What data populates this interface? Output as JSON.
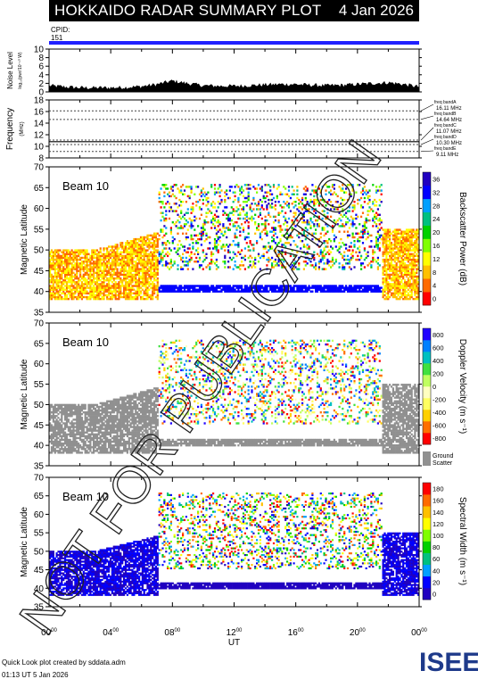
{
  "header": {
    "title": "HOKKAIDO RADAR SUMMARY PLOT",
    "date": "4 Jan 2026"
  },
  "cpid": {
    "label": "CPID:",
    "value": "151"
  },
  "footer": {
    "line1": "Quick Look plot created by sddata.adm",
    "line2": "01:13 UT  5 Jan 2026"
  },
  "watermark": "NOT FOR PUBLICATION",
  "logo_text": "ISEE",
  "chart_data": [
    {
      "type": "area",
      "name": "noise",
      "ylabel": "Noise Level",
      "ylabel_sub": "log₁₀(pwr/10⁻¹⁰ W)",
      "ylim": [
        0,
        10
      ],
      "yticks": [
        "0",
        "2",
        "4",
        "6",
        "8",
        "10"
      ],
      "x": [
        0,
        1,
        2,
        3,
        4,
        5,
        6,
        7,
        8,
        9,
        10,
        11,
        12,
        13,
        14,
        15,
        16,
        17,
        18,
        19,
        20,
        21,
        22,
        23,
        24
      ],
      "values": [
        1.5,
        1.2,
        1.0,
        1.0,
        1.0,
        1.1,
        1.3,
        1.8,
        2.6,
        2.0,
        1.5,
        1.4,
        1.4,
        1.5,
        1.7,
        1.8,
        1.8,
        1.6,
        1.5,
        1.6,
        1.8,
        2.0,
        2.2,
        1.8,
        1.2
      ]
    },
    {
      "type": "line",
      "name": "frequency",
      "ylabel": "Frequency",
      "ylabel_sub": "(MHz)",
      "ylim": [
        8,
        18
      ],
      "yticks": [
        "8",
        "10",
        "12",
        "14",
        "16",
        "18"
      ],
      "bands": [
        {
          "name": "freq bandA",
          "mhz": 16.11,
          "label": "16.11 MHz"
        },
        {
          "name": "freq bandB",
          "mhz": 14.64,
          "label": "14.64 MHz"
        },
        {
          "name": "freq bandC",
          "mhz": 11.07,
          "label": "11.07 MHz"
        },
        {
          "name": "freq bandD",
          "mhz": 10.3,
          "label": "10.30 MHz"
        },
        {
          "name": "freq bandE",
          "mhz": 9.11,
          "label": "9.11 MHz"
        }
      ],
      "operating_mhz": 10.8
    },
    {
      "type": "heatmap",
      "name": "power",
      "beam_label": "Beam 10",
      "ylabel": "Magnetic Latitude",
      "ylim": [
        35,
        70
      ],
      "yticks": [
        "35",
        "40",
        "45",
        "50",
        "55",
        "60",
        "65",
        "70"
      ],
      "colorbar_label": "Backscatter Power (dB)",
      "colorbar_ticks": [
        "0",
        "4",
        "8",
        "12",
        "16",
        "20",
        "24",
        "28",
        "32",
        "36"
      ]
    },
    {
      "type": "heatmap",
      "name": "velocity",
      "beam_label": "Beam 10",
      "ylabel": "Magnetic Latitude",
      "ylim": [
        35,
        70
      ],
      "yticks": [
        "35",
        "40",
        "45",
        "50",
        "55",
        "60",
        "65",
        "70"
      ],
      "colorbar_label": "Doppler Velocity (m s⁻¹)",
      "colorbar_ticks": [
        "-800",
        "-600",
        "-400",
        "-200",
        "0",
        "200",
        "400",
        "600",
        "800"
      ],
      "ground_scatter_label": "Ground",
      "ground_scatter_label2": "Scatter"
    },
    {
      "type": "heatmap",
      "name": "width",
      "beam_label": "Beam 10",
      "ylabel": "Magnetic Latitude",
      "ylim": [
        35,
        70
      ],
      "yticks": [
        "35",
        "40",
        "45",
        "50",
        "55",
        "60",
        "65",
        "70"
      ],
      "colorbar_label": "Spectral Width (m s⁻¹)",
      "colorbar_ticks": [
        "0",
        "20",
        "40",
        "60",
        "80",
        "100",
        "120",
        "140",
        "160",
        "180"
      ]
    }
  ],
  "xaxis": {
    "label": "UT",
    "ticks": [
      "00",
      "04",
      "08",
      "12",
      "16",
      "20",
      "00"
    ],
    "tick_sup": "00"
  },
  "colors": {
    "power_scale": [
      "#ff0000",
      "#ff6a00",
      "#ffc000",
      "#ffff00",
      "#80ff00",
      "#00d000",
      "#00c080",
      "#00a0ff",
      "#0000ff",
      "#2000c0"
    ],
    "velocity_scale": [
      "#ff0000",
      "#ff7000",
      "#ffd000",
      "#ffff60",
      "#ffffc0",
      "#c0ff60",
      "#40e040",
      "#00c0c0",
      "#0080ff",
      "#2000ff"
    ],
    "width_scale": [
      "#2000c0",
      "#0000ff",
      "#00a0ff",
      "#00c080",
      "#00d000",
      "#80ff00",
      "#ffff00",
      "#ffc000",
      "#ff6a00",
      "#ff0000"
    ],
    "ground": "#909090",
    "cpid_bar": "#2020ff"
  }
}
